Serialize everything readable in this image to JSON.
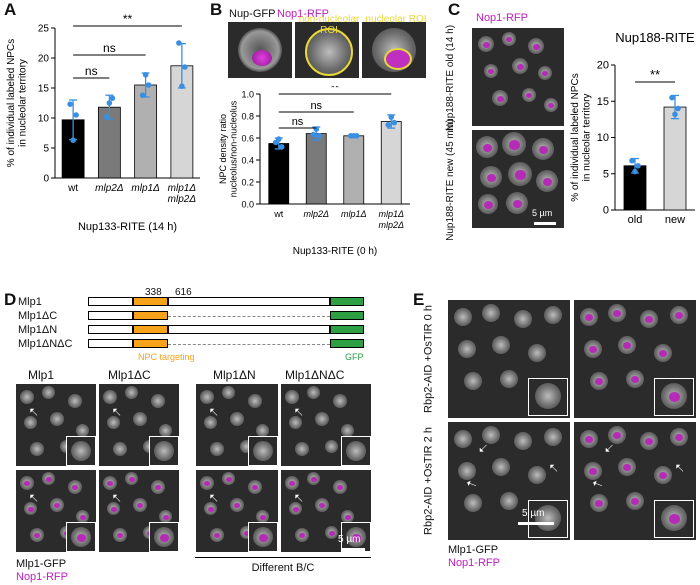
{
  "panels": {
    "a": "A",
    "b": "B",
    "c": "C",
    "d": "D",
    "e": "E"
  },
  "colors": {
    "magenta": "#c020c0",
    "green": "#2ea043",
    "orange": "#f7a21b",
    "blue_point": "#3a8fe0"
  },
  "chart_data": [
    {
      "type": "bar",
      "panel": "A",
      "categories": [
        "wt",
        "mlp2Δ",
        "mlp1Δ",
        "mlp1Δ mlp2Δ"
      ],
      "values": [
        9.7,
        11.8,
        15.5,
        18.7
      ],
      "errors": [
        3.3,
        2.0,
        2.0,
        3.7
      ],
      "points": [
        [
          12.3,
          6.3,
          10.5
        ],
        [
          10.2,
          12.5,
          13.3
        ],
        [
          13.8,
          17.2,
          15.5
        ],
        [
          22.5,
          15.3,
          18.5
        ]
      ],
      "bar_colors": [
        "#000000",
        "#7a7a7a",
        "#b0b0b0",
        "#d6d6d6"
      ],
      "ylabel": "% of individual labeled NPCs in nucleolar territory",
      "xlabel": "Nup133-RITE (14 h)",
      "ylim": [
        0,
        25
      ],
      "yticks": [
        "0",
        "5",
        "10",
        "15",
        "20",
        "25"
      ],
      "significance": [
        "ns",
        "ns",
        "**"
      ]
    },
    {
      "type": "bar",
      "panel": "B",
      "categories": [
        "wt",
        "mlp2Δ",
        "mlp1Δ",
        "mlp1Δ mlp2Δ"
      ],
      "values": [
        0.55,
        0.64,
        0.62,
        0.75
      ],
      "errors": [
        0.05,
        0.06,
        0.01,
        0.06
      ],
      "points": [
        [
          0.56,
          0.59,
          0.52
        ],
        [
          0.63,
          0.68,
          0.62
        ],
        [
          0.62,
          0.62,
          0.62
        ],
        [
          0.72,
          0.79,
          0.74
        ]
      ],
      "bar_colors": [
        "#000000",
        "#7a7a7a",
        "#b0b0b0",
        "#d6d6d6"
      ],
      "ylabel": "NPC density ratio nucleolus/non-nucleolus",
      "xlabel": "Nup133-RITE (0 h)",
      "ylim": [
        0,
        1
      ],
      "yticks": [
        "0.0",
        "0.2",
        "0.4",
        "0.6",
        "0.8",
        "1.0"
      ],
      "significance": [
        "ns",
        "ns",
        "**"
      ]
    },
    {
      "type": "bar",
      "panel": "C",
      "categories": [
        "old",
        "new"
      ],
      "values": [
        6.1,
        14.2
      ],
      "errors": [
        1.0,
        1.6
      ],
      "points": [
        [
          6.8,
          5.3,
          6.1
        ],
        [
          15.5,
          13.2,
          14.0
        ]
      ],
      "bar_colors": [
        "#000000",
        "#d6d6d6"
      ],
      "title": "Nup188-RITE",
      "ylabel": "% of individual labeled NPCs in nucleolar territory",
      "ylim": [
        0,
        20
      ],
      "yticks": [
        "0",
        "5",
        "10",
        "15",
        "20"
      ],
      "significance": [
        "**"
      ]
    }
  ],
  "panel_b": {
    "img_labels": [
      "Nup-GFP",
      "Nop1-RFP",
      "non-nucleolar ROI",
      "nucleolar ROI"
    ]
  },
  "panel_c": {
    "label_top": "Nop1-RFP",
    "old_label": "Nup188-RITE old (14 h)",
    "new_label": "Nup188-RITE new (45 min)",
    "scale": "5 µm"
  },
  "panel_d": {
    "constructs": [
      "Mlp1",
      "Mlp1ΔC",
      "Mlp1ΔN",
      "Mlp1ΔNΔC"
    ],
    "pos_start": "338",
    "pos_end": "616",
    "npc_targeting": "NPC targeting",
    "gfp": "GFP",
    "col_labels": [
      "Mlp1",
      "Mlp1ΔC",
      "Mlp1ΔN",
      "Mlp1ΔNΔC"
    ],
    "legend_gfp": "Mlp1-GFP",
    "legend_rfp": "Nop1-RFP",
    "different_bc": "Different B/C",
    "scale": "5 µm"
  },
  "panel_e": {
    "row1": "Rbp2-AID +OsTIR 0 h",
    "row2": "Rbp2-AID +OsTIR 2 h",
    "legend_gfp": "Mlp1-GFP",
    "legend_rfp": "Nop1-RFP",
    "scale": "5 µm"
  }
}
